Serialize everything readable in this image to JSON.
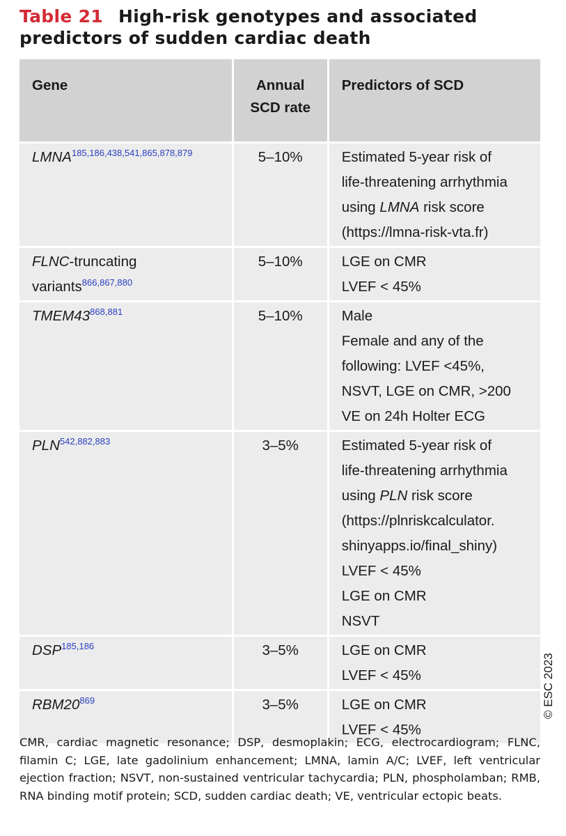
{
  "table": {
    "label": "Table 21",
    "title": "High-risk genotypes and associated predictors of sudden cardiac death",
    "header": [
      "Gene",
      "Annual SCD rate",
      "Predictors of SCD"
    ],
    "rows": [
      {
        "gene": "LMNA",
        "refs": "185,186,438,541,865,878,879",
        "rate": "5–10%",
        "predictors": [
          "Estimated 5-year risk of",
          "life-threatening arrhythmia",
          [
            "using ",
            "LMNA",
            " risk score"
          ],
          "(https://lmna-risk-vta.fr)"
        ]
      },
      {
        "gene": "FLNC",
        "gene_suffix": "-truncating variants",
        "refs": "866,867,880",
        "rate": "5–10%",
        "predictors": [
          "LGE on CMR",
          "LVEF < 45%"
        ]
      },
      {
        "gene": "TMEM43",
        "refs": "868,881",
        "rate": "5–10%",
        "predictors": [
          "Male",
          "Female and any of the",
          "following: LVEF <45%,",
          "NSVT, LGE on CMR, >200",
          "VE on 24h Holter ECG"
        ]
      },
      {
        "gene": "PLN",
        "refs": "542,882,883",
        "rate": "3–5%",
        "predictors": [
          "Estimated 5-year risk of",
          "life-threatening arrhythmia",
          [
            "using ",
            "PLN",
            " risk score"
          ],
          "(https://plnriskcalculator.",
          "shinyapps.io/final_shiny)",
          "LVEF < 45%",
          "LGE on CMR",
          "NSVT"
        ]
      },
      {
        "gene": "DSP",
        "refs": "185,186",
        "rate": "3–5%",
        "predictors": [
          "LGE on CMR",
          "LVEF < 45%"
        ]
      },
      {
        "gene": "RBM20",
        "refs": "869",
        "rate": "3–5%",
        "predictors": [
          "LGE on CMR",
          "LVEF < 45%"
        ]
      }
    ]
  },
  "notes": "CMR, cardiac magnetic resonance; DSP, desmoplakin; ECG, electrocardiogram; FLNC, filamin C; LGE, late gadolinium enhancement; LMNA, lamin A/C; LVEF, left ventricular ejection fraction; NSVT, non-sustained ventricular tachycardia; PLN, phospholamban; RMB, RNA binding motif protein; SCD, sudden cardiac death; VE, ventricular ectopic beats.",
  "copyright": "© ESC 2023"
}
